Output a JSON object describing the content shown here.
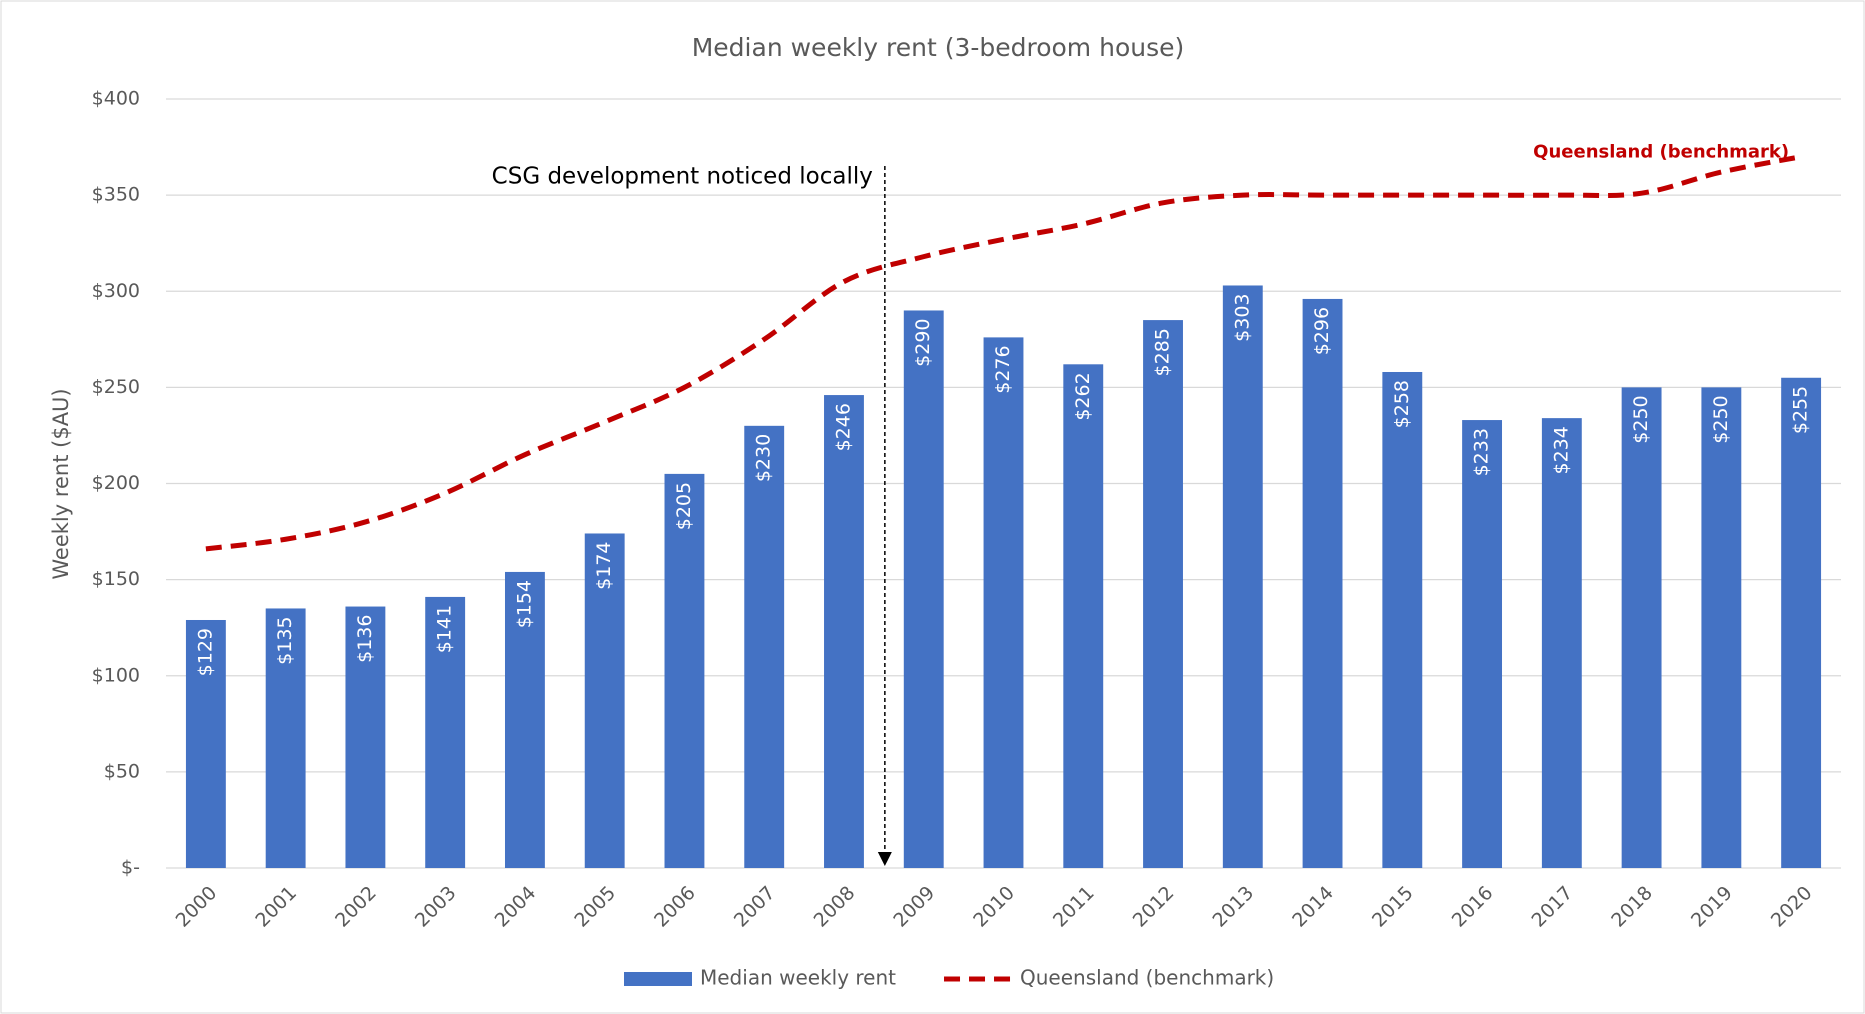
{
  "chart_data": {
    "type": "bar",
    "title": "Median weekly rent (3-bedroom house)",
    "y_label": "Weekly rent ($AU)",
    "categories": [
      "2000",
      "2001",
      "2002",
      "2003",
      "2004",
      "2005",
      "2006",
      "2007",
      "2008",
      "2009",
      "2010",
      "2011",
      "2012",
      "2013",
      "2014",
      "2015",
      "2016",
      "2017",
      "2018",
      "2019",
      "2020"
    ],
    "series": [
      {
        "name": "Median weekly rent",
        "type": "bar",
        "color": "#4472c4",
        "values": [
          129,
          135,
          136,
          141,
          154,
          174,
          205,
          230,
          246,
          290,
          276,
          262,
          285,
          303,
          296,
          258,
          233,
          234,
          250,
          250,
          255
        ],
        "value_labels": [
          "$129",
          "$135",
          "$136",
          "$141",
          "$154",
          "$174",
          "$205",
          "$230",
          "$246",
          "$290",
          "$276",
          "$262",
          "$285",
          "$303",
          "$296",
          "$258",
          "$233",
          "$234",
          "$250",
          "$250",
          "$255"
        ]
      },
      {
        "name": "Queensland (benchmark)",
        "type": "line",
        "color": "#c00000",
        "dashed": true,
        "values": [
          166,
          171,
          180,
          195,
          215,
          232,
          250,
          275,
          305,
          318,
          327,
          335,
          346,
          350,
          350,
          350,
          350,
          350,
          351,
          362,
          370
        ]
      }
    ],
    "annotation": {
      "text": "CSG development noticed locally",
      "x": "2009"
    },
    "ylim": [
      0,
      400
    ],
    "yticks": [
      {
        "value": 0,
        "label": "$-"
      },
      {
        "value": 50,
        "label": "$50"
      },
      {
        "value": 100,
        "label": "$100"
      },
      {
        "value": 150,
        "label": "$150"
      },
      {
        "value": 200,
        "label": "$200"
      },
      {
        "value": 250,
        "label": "$250"
      },
      {
        "value": 300,
        "label": "$300"
      },
      {
        "value": 350,
        "label": "$350"
      },
      {
        "value": 400,
        "label": "$400"
      }
    ],
    "grid": true,
    "legend": "bottom"
  }
}
